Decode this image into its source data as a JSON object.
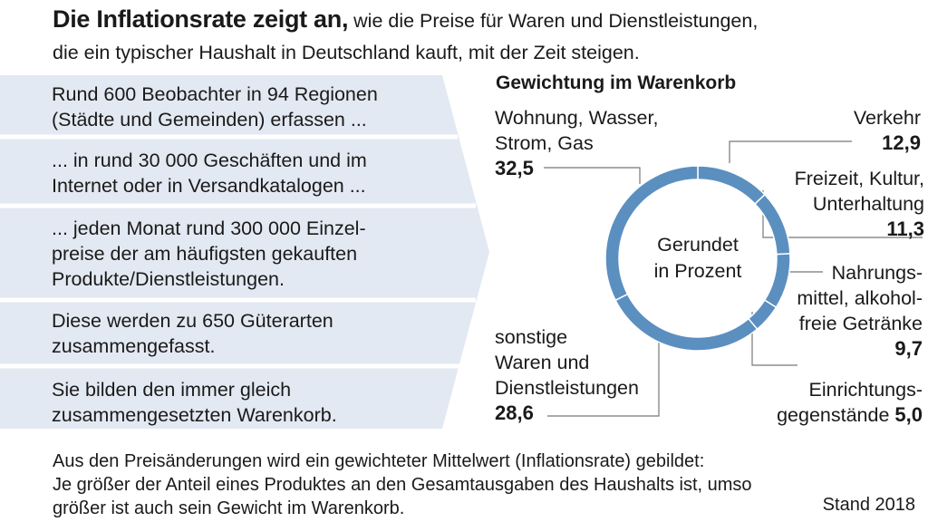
{
  "header": {
    "lead": "Die Inflationsrate zeigt an,",
    "sub_line1": " wie die Preise für Waren und Dienstleistungen,",
    "sub_line2": "die ein typischer Haushalt in Deutschland kauft, mit der Zeit steigen."
  },
  "steps": [
    {
      "line1": "Rund 600 Beobachter in 94 Regionen",
      "line2": "(Städte und Gemeinden) erfassen ...",
      "line3": ""
    },
    {
      "line1": "... in rund 30 000 Geschäften und im",
      "line2": "Internet oder in Versandkatalogen ...",
      "line3": ""
    },
    {
      "line1": "... jeden Monat rund 300 000 Einzel-",
      "line2": "preise der am häufigsten gekauften",
      "line3": "Produkte/Dienstleistungen."
    },
    {
      "line1": "Diese werden zu 650 Güterarten",
      "line2": "zusammengefasst.",
      "line3": ""
    },
    {
      "line1": "Sie bilden den immer gleich",
      "line2": "zusammengesetzten Warenkorb.",
      "line3": ""
    }
  ],
  "colors": {
    "panel": "#e3e9f2",
    "donut": "#5b8fc0",
    "leader": "#777777"
  },
  "chart_data": {
    "type": "pie",
    "title": "Gewichtung im Warenkorb",
    "center_label": [
      "Gerundet",
      "in Prozent"
    ],
    "unit": "Prozent",
    "slices": [
      {
        "label": [
          "Verkehr"
        ],
        "value": 12.9,
        "value_label": "12,9"
      },
      {
        "label": [
          "Freizeit, Kultur,",
          "Unterhaltung"
        ],
        "value": 11.3,
        "value_label": "11,3"
      },
      {
        "label": [
          "Nahrungs-",
          "mittel, alkohol-",
          "freie Getränke"
        ],
        "value": 9.7,
        "value_label": "9,7"
      },
      {
        "label": [
          "Einrichtungs-",
          "gegenstände"
        ],
        "value": 5.0,
        "value_label": "5,0"
      },
      {
        "label": [
          "sonstige",
          "Waren und",
          "Dienstleistungen"
        ],
        "value": 28.6,
        "value_label": "28,6"
      },
      {
        "label": [
          "Wohnung, Wasser,",
          "Strom, Gas"
        ],
        "value": 32.5,
        "value_label": "32,5"
      }
    ]
  },
  "footer": {
    "line1": "Aus den Preisänderungen wird ein gewichteter Mittelwert (Inflationsrate) gebildet:",
    "line2": "Je größer der Anteil eines Produktes an den Gesamtausgaben des Haushalts ist, umso",
    "line3": "größer ist auch sein Gewicht im Warenkorb.",
    "stand": "Stand 2018"
  }
}
